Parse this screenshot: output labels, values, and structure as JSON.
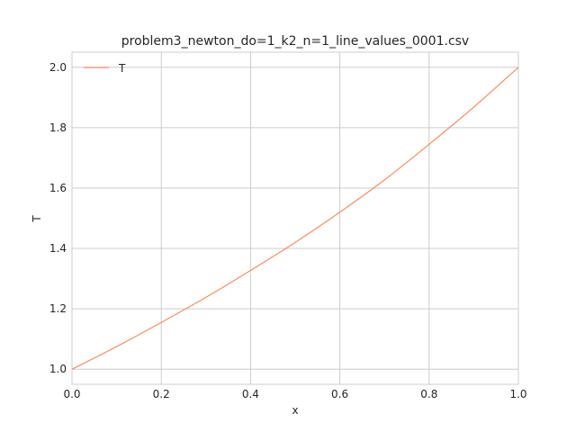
{
  "chart_data": {
    "type": "line",
    "title": "problem3_newton_do=1_k2_n=1_line_values_0001.csv",
    "xlabel": "x",
    "ylabel": "T",
    "xlim": [
      0,
      1
    ],
    "ylim": [
      0.95,
      2.05
    ],
    "xticks": [
      0,
      0.2,
      0.4,
      0.6,
      0.8,
      1.0
    ],
    "xtick_labels": [
      "0.0",
      "0.2",
      "0.4",
      "0.6",
      "0.8",
      "1.0"
    ],
    "yticks": [
      1.0,
      1.2,
      1.4,
      1.6,
      1.8,
      2.0
    ],
    "ytick_labels": [
      "1.0",
      "1.2",
      "1.4",
      "1.6",
      "1.8",
      "2.0"
    ],
    "grid": true,
    "legend_position": "top-left",
    "series": [
      {
        "name": "T",
        "color": "#ff8c5a",
        "x": [
          0.0,
          0.1,
          0.2,
          0.3,
          0.4,
          0.5,
          0.6,
          0.7,
          0.8,
          0.9,
          1.0
        ],
        "y": [
          1.0,
          1.075,
          1.155,
          1.238,
          1.327,
          1.42,
          1.52,
          1.627,
          1.745,
          1.868,
          2.0
        ]
      }
    ]
  }
}
